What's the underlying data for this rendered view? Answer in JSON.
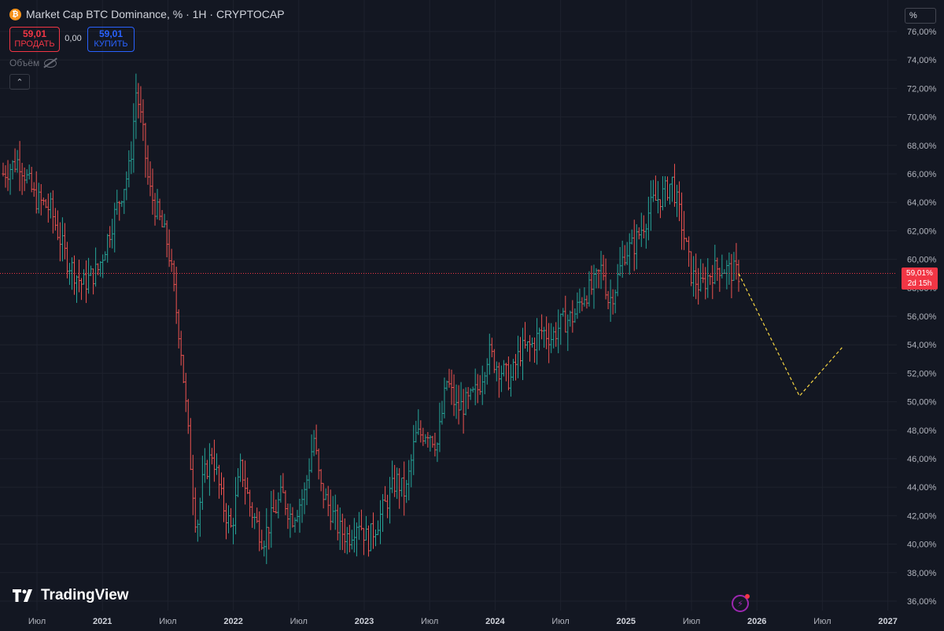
{
  "header": {
    "title": "Market Cap BTC Dominance, % · 1H · CRYPTOCAP",
    "icon": "bitcoin-icon"
  },
  "trade": {
    "sell_price": "59,01",
    "sell_label": "ПРОДАТЬ",
    "spread": "0,00",
    "buy_price": "59,01",
    "buy_label": "КУПИТЬ"
  },
  "volume_label": "Объём",
  "scale_mode": "%",
  "price_tag": {
    "value": "59,01%",
    "countdown": "2d 15h"
  },
  "branding": "TradingView",
  "colors": {
    "up": "#26a69a",
    "down": "#ef5350",
    "projection": "#f5d442",
    "current_line": "#f23645",
    "background": "#131722"
  },
  "chart_data": {
    "type": "candlestick",
    "title": "Market Cap BTC Dominance, %",
    "y_ticks": [
      "36,00%",
      "38,00%",
      "40,00%",
      "42,00%",
      "44,00%",
      "46,00%",
      "48,00%",
      "50,00%",
      "52,00%",
      "54,00%",
      "56,00%",
      "58,00%",
      "60,00%",
      "62,00%",
      "64,00%",
      "66,00%",
      "68,00%",
      "70,00%",
      "72,00%",
      "74,00%",
      "76,00%"
    ],
    "x_ticks": [
      "Июл",
      "2021",
      "Июл",
      "2022",
      "Июл",
      "2023",
      "Июл",
      "2024",
      "Июл",
      "2025",
      "Июл",
      "2026",
      "Июл",
      "2027"
    ],
    "ylim": [
      36,
      76
    ],
    "current_value": 59.01,
    "price_path": [
      {
        "t": 0.0,
        "v": 66.0
      },
      {
        "t": 0.5,
        "v": 67.0
      },
      {
        "t": 1.0,
        "v": 64.3
      },
      {
        "t": 1.5,
        "v": 63.5
      },
      {
        "t": 2.0,
        "v": 60.0
      },
      {
        "t": 2.5,
        "v": 58.2
      },
      {
        "t": 3.0,
        "v": 59.3
      },
      {
        "t": 3.5,
        "v": 63.0
      },
      {
        "t": 4.0,
        "v": 66.5
      },
      {
        "t": 4.2,
        "v": 72.0
      },
      {
        "t": 4.4,
        "v": 69.0
      },
      {
        "t": 4.6,
        "v": 65.0
      },
      {
        "t": 4.9,
        "v": 63.0
      },
      {
        "t": 5.2,
        "v": 61.0
      },
      {
        "t": 5.6,
        "v": 54.0
      },
      {
        "t": 5.9,
        "v": 46.0
      },
      {
        "t": 6.1,
        "v": 41.0
      },
      {
        "t": 6.3,
        "v": 44.5
      },
      {
        "t": 6.6,
        "v": 46.5
      },
      {
        "t": 6.9,
        "v": 43.0
      },
      {
        "t": 7.2,
        "v": 41.0
      },
      {
        "t": 7.5,
        "v": 45.5
      },
      {
        "t": 7.8,
        "v": 42.5
      },
      {
        "t": 8.2,
        "v": 40.3
      },
      {
        "t": 8.5,
        "v": 42.0
      },
      {
        "t": 8.8,
        "v": 43.5
      },
      {
        "t": 9.1,
        "v": 41.8
      },
      {
        "t": 9.5,
        "v": 43.5
      },
      {
        "t": 9.8,
        "v": 47.5
      },
      {
        "t": 10.0,
        "v": 44.0
      },
      {
        "t": 10.3,
        "v": 42.5
      },
      {
        "t": 10.6,
        "v": 41.0
      },
      {
        "t": 10.9,
        "v": 40.5
      },
      {
        "t": 11.2,
        "v": 41.8
      },
      {
        "t": 11.5,
        "v": 40.2
      },
      {
        "t": 11.8,
        "v": 41.5
      },
      {
        "t": 12.1,
        "v": 43.0
      },
      {
        "t": 12.4,
        "v": 44.5
      },
      {
        "t": 12.7,
        "v": 43.5
      },
      {
        "t": 13.0,
        "v": 47.5
      },
      {
        "t": 13.4,
        "v": 48.0
      },
      {
        "t": 13.7,
        "v": 47.0
      },
      {
        "t": 14.0,
        "v": 51.5
      },
      {
        "t": 14.3,
        "v": 49.5
      },
      {
        "t": 14.7,
        "v": 50.0
      },
      {
        "t": 15.0,
        "v": 51.0
      },
      {
        "t": 15.3,
        "v": 53.5
      },
      {
        "t": 15.6,
        "v": 52.5
      },
      {
        "t": 16.0,
        "v": 51.5
      },
      {
        "t": 16.3,
        "v": 53.5
      },
      {
        "t": 16.7,
        "v": 54.0
      },
      {
        "t": 17.0,
        "v": 55.0
      },
      {
        "t": 17.3,
        "v": 54.5
      },
      {
        "t": 17.6,
        "v": 55.5
      },
      {
        "t": 18.0,
        "v": 56.0
      },
      {
        "t": 18.3,
        "v": 57.5
      },
      {
        "t": 18.6,
        "v": 58.0
      },
      {
        "t": 18.9,
        "v": 59.5
      },
      {
        "t": 19.1,
        "v": 57.0
      },
      {
        "t": 19.3,
        "v": 58.0
      },
      {
        "t": 19.6,
        "v": 60.5
      },
      {
        "t": 19.9,
        "v": 61.0
      },
      {
        "t": 20.2,
        "v": 62.5
      },
      {
        "t": 20.5,
        "v": 64.0
      },
      {
        "t": 20.8,
        "v": 64.5
      },
      {
        "t": 21.1,
        "v": 65.5
      },
      {
        "t": 21.4,
        "v": 62.5
      },
      {
        "t": 21.7,
        "v": 59.0
      },
      {
        "t": 22.0,
        "v": 58.0
      },
      {
        "t": 22.3,
        "v": 59.0
      },
      {
        "t": 22.6,
        "v": 59.5
      },
      {
        "t": 22.9,
        "v": 59.2
      },
      {
        "t": 23.2,
        "v": 59.01
      }
    ],
    "projection": [
      {
        "date": "2026",
        "v": 59.0
      },
      {
        "date": "Июл 2026",
        "v": 50.4
      },
      {
        "date": "2027",
        "v": 53.8
      }
    ]
  }
}
